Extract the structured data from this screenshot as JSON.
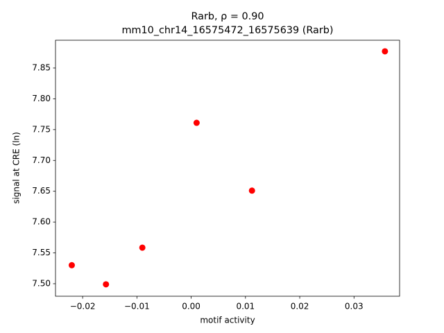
{
  "chart_data": {
    "type": "scatter",
    "title": "Rarb, ρ = 0.90",
    "subtitle": "mm10_chr14_16575472_16575639 (Rarb)",
    "x_label": "motif activity",
    "y_label": "signal at CRE (ln)",
    "color": "#ff0000",
    "x": [
      -0.022,
      -0.0157,
      -0.009,
      0.001,
      0.0112,
      0.0357
    ],
    "values": [
      7.53,
      7.499,
      7.5585,
      7.761,
      7.651,
      7.877
    ],
    "xlim": [
      -0.025,
      0.0384
    ],
    "ylim": [
      7.4797,
      7.895
    ],
    "xticks": [
      {
        "value": -0.02,
        "label": "−0.02"
      },
      {
        "value": -0.01,
        "label": "−0.01"
      },
      {
        "value": 0,
        "label": "0.00"
      },
      0.01,
      0.02,
      0.03
    ],
    "yticks": [
      {
        "value": 7.5,
        "label": "7.50"
      },
      7.55,
      {
        "value": 7.6,
        "label": "7.60"
      },
      7.65,
      {
        "value": 7.7,
        "label": "7.70"
      },
      7.75,
      {
        "value": 7.8,
        "label": "7.80"
      },
      7.85
    ]
  }
}
